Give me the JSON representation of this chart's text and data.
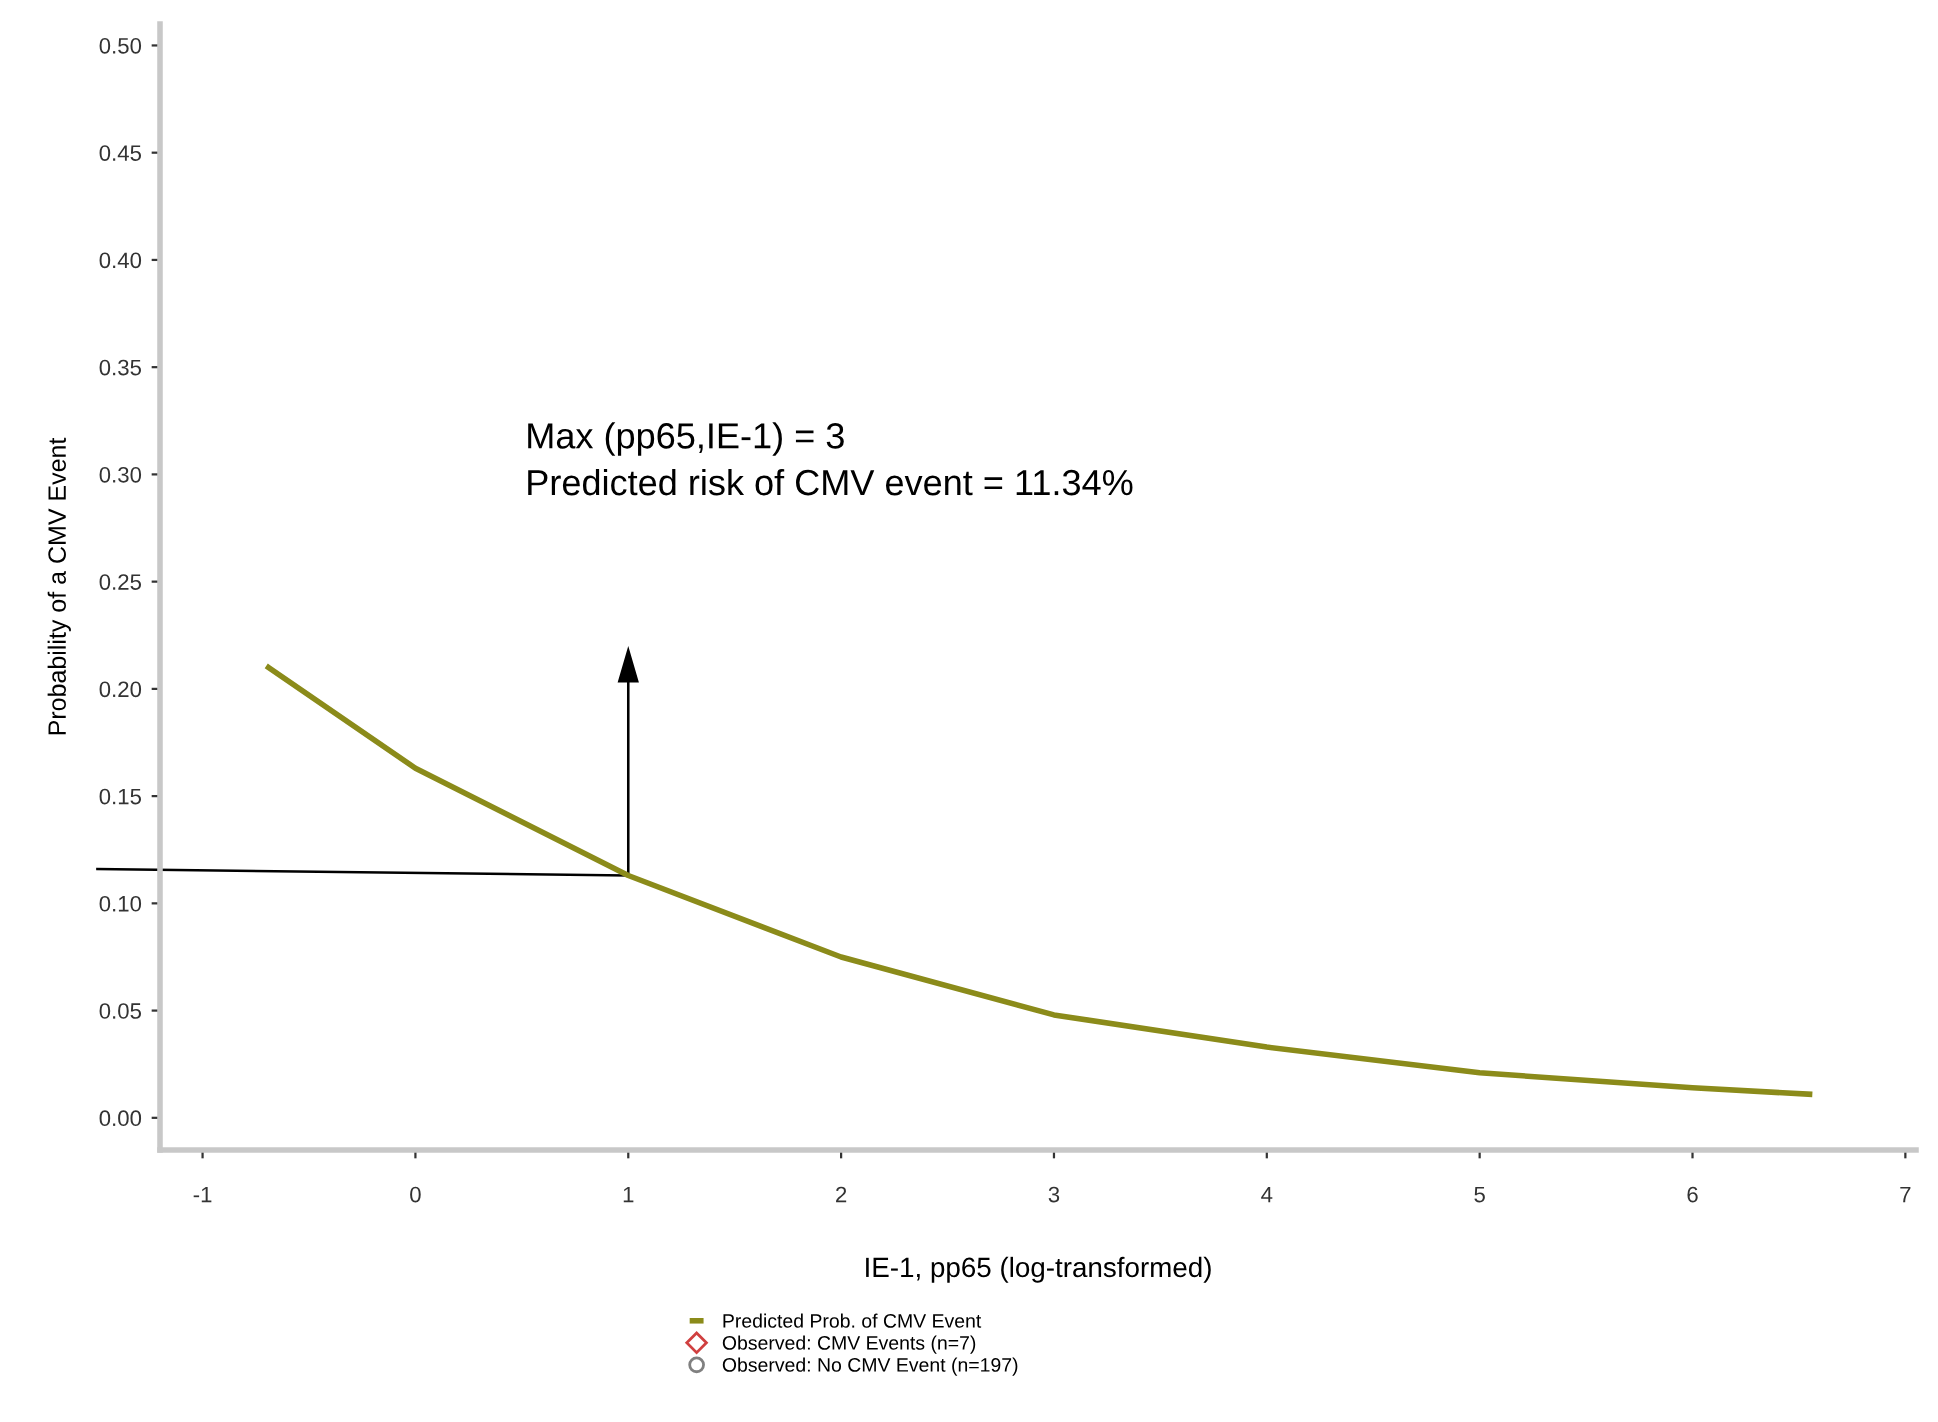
{
  "chart_data": {
    "type": "line",
    "xlabel": "IE-1, pp65 (log-transformed)",
    "ylabel": "Probability of a CMV Event",
    "xlim": [
      -1.2,
      7.05
    ],
    "ylim": [
      -0.015,
      0.51
    ],
    "xticks": [
      -1,
      0,
      1,
      2,
      3,
      4,
      5,
      6,
      7
    ],
    "yticks": [
      {
        "value": 0,
        "label": "0.00"
      },
      {
        "value": 0.05,
        "label": "0.05"
      },
      {
        "value": 0.1,
        "label": "0.10"
      },
      {
        "value": 0.15,
        "label": "0.15"
      },
      {
        "value": 0.2,
        "label": "0.20"
      },
      {
        "value": 0.25,
        "label": "0.25"
      },
      {
        "value": 0.3,
        "label": "0.30"
      },
      {
        "value": 0.35,
        "label": "0.35"
      },
      {
        "value": 0.4,
        "label": "0.40"
      },
      {
        "value": 0.45,
        "label": "0.45"
      },
      {
        "value": 0.5,
        "label": "0.50"
      }
    ],
    "grid": false,
    "legend": "bottom",
    "series": [
      {
        "name": "Predicted Prob. of CMV Event",
        "color": "#8b8b1a",
        "x": [
          -0.69,
          0,
          1,
          2,
          3,
          4,
          5,
          6,
          6.55
        ],
        "values": [
          0.21,
          0.163,
          0.113,
          0.075,
          0.048,
          0.033,
          0.021,
          0.014,
          0.011
        ]
      },
      {
        "name": "Observed: CMV Events (n=7)",
        "type": "scatter",
        "marker": "diamond",
        "color": "#d04040"
      },
      {
        "name": "Observed: No CMV Event (n=197)",
        "type": "scatter",
        "marker": "circle",
        "color": "#808080"
      }
    ],
    "annotations": [
      "Max (pp65,IE-1) = 3\nPredicted risk of CMV event = 11.34%"
    ]
  }
}
